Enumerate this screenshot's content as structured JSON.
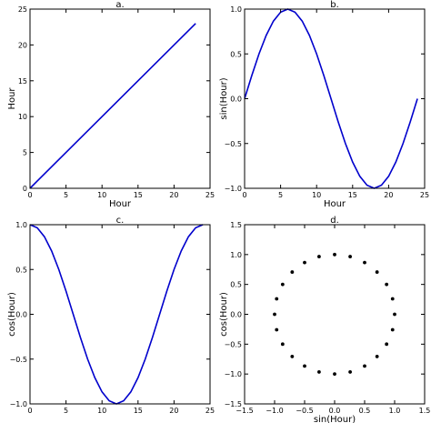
{
  "chart_data": [
    {
      "type": "line",
      "title": "a.",
      "xlabel": "Hour",
      "ylabel": "Hour",
      "xlim": [
        0,
        25
      ],
      "ylim": [
        0,
        25
      ],
      "xticks": [
        0,
        5,
        10,
        15,
        20,
        25
      ],
      "yticks": [
        0,
        5,
        10,
        15,
        20,
        25
      ],
      "xtick_labels": [
        "0",
        "5",
        "10",
        "15",
        "20",
        "25"
      ],
      "ytick_labels": [
        "0",
        "5",
        "10",
        "15",
        "20",
        "25"
      ],
      "grid": false,
      "series": [
        {
          "color": "#0000cc",
          "x": [
            0,
            1,
            2,
            3,
            4,
            5,
            6,
            7,
            8,
            9,
            10,
            11,
            12,
            13,
            14,
            15,
            16,
            17,
            18,
            19,
            20,
            21,
            22,
            23
          ],
          "y": [
            0,
            1,
            2,
            3,
            4,
            5,
            6,
            7,
            8,
            9,
            10,
            11,
            12,
            13,
            14,
            15,
            16,
            17,
            18,
            19,
            20,
            21,
            22,
            23
          ]
        }
      ]
    },
    {
      "type": "line",
      "title": "b.",
      "xlabel": "Hour",
      "ylabel": "sin(Hour)",
      "xlim": [
        0,
        25
      ],
      "ylim": [
        -1.0,
        1.0
      ],
      "xticks": [
        0,
        5,
        10,
        15,
        20,
        25
      ],
      "yticks": [
        -1.0,
        -0.5,
        0.0,
        0.5,
        1.0
      ],
      "xtick_labels": [
        "0",
        "5",
        "10",
        "15",
        "20",
        "25"
      ],
      "ytick_labels": [
        "−1.0",
        "−0.5",
        "0.0",
        "0.5",
        "1.0"
      ],
      "grid": false,
      "series": [
        {
          "color": "#0000cc",
          "x": [
            0,
            1,
            2,
            3,
            4,
            5,
            6,
            7,
            8,
            9,
            10,
            11,
            12,
            13,
            14,
            15,
            16,
            17,
            18,
            19,
            20,
            21,
            22,
            23,
            24
          ],
          "y": [
            0.0,
            0.259,
            0.5,
            0.707,
            0.866,
            0.966,
            1.0,
            0.966,
            0.866,
            0.707,
            0.5,
            0.259,
            0.0,
            -0.259,
            -0.5,
            -0.707,
            -0.866,
            -0.966,
            -1.0,
            -0.966,
            -0.866,
            -0.707,
            -0.5,
            -0.259,
            0.0
          ]
        }
      ]
    },
    {
      "type": "line",
      "title": "c.",
      "xlabel": "",
      "ylabel": "cos(Hour)",
      "xlim": [
        0,
        25
      ],
      "ylim": [
        -1.0,
        1.0
      ],
      "xticks": [
        0,
        5,
        10,
        15,
        20,
        25
      ],
      "yticks": [
        -1.0,
        -0.5,
        0.0,
        0.5,
        1.0
      ],
      "xtick_labels": [
        "0",
        "5",
        "10",
        "15",
        "20",
        "25"
      ],
      "ytick_labels": [
        "−1.0",
        "−0.5",
        "0.0",
        "0.5",
        "1.0"
      ],
      "grid": false,
      "series": [
        {
          "color": "#0000cc",
          "x": [
            0,
            1,
            2,
            3,
            4,
            5,
            6,
            7,
            8,
            9,
            10,
            11,
            12,
            13,
            14,
            15,
            16,
            17,
            18,
            19,
            20,
            21,
            22,
            23,
            24
          ],
          "y": [
            1.0,
            0.966,
            0.866,
            0.707,
            0.5,
            0.259,
            0.0,
            -0.259,
            -0.5,
            -0.707,
            -0.866,
            -0.966,
            -1.0,
            -0.966,
            -0.866,
            -0.707,
            -0.5,
            -0.259,
            0.0,
            0.259,
            0.5,
            0.707,
            0.866,
            0.966,
            1.0
          ]
        }
      ]
    },
    {
      "type": "scatter",
      "title": "d.",
      "xlabel": "sin(Hour)",
      "ylabel": "cos(Hour)",
      "xlim": [
        -1.5,
        1.5
      ],
      "ylim": [
        -1.5,
        1.5
      ],
      "xticks": [
        -1.5,
        -1.0,
        -0.5,
        0.0,
        0.5,
        1.0,
        1.5
      ],
      "yticks": [
        -1.5,
        -1.0,
        -0.5,
        0.0,
        0.5,
        1.0,
        1.5
      ],
      "xtick_labels": [
        "−1.5",
        "−1.0",
        "−0.5",
        "0.0",
        "0.5",
        "1.0",
        "1.5"
      ],
      "ytick_labels": [
        "−1.5",
        "−1.0",
        "−0.5",
        "0.0",
        "0.5",
        "1.0",
        "1.5"
      ],
      "grid": false,
      "series": [
        {
          "color": "#000000",
          "x": [
            0.0,
            0.259,
            0.5,
            0.707,
            0.866,
            0.966,
            1.0,
            0.966,
            0.866,
            0.707,
            0.5,
            0.259,
            0.0,
            -0.259,
            -0.5,
            -0.707,
            -0.866,
            -0.966,
            -1.0,
            -0.966,
            -0.866,
            -0.707,
            -0.5,
            -0.259
          ],
          "y": [
            1.0,
            0.966,
            0.866,
            0.707,
            0.5,
            0.259,
            0.0,
            -0.259,
            -0.5,
            -0.707,
            -0.866,
            -0.966,
            -1.0,
            -0.966,
            -0.866,
            -0.707,
            -0.5,
            -0.259,
            0.0,
            0.259,
            0.5,
            0.707,
            0.866,
            0.966
          ]
        }
      ]
    }
  ]
}
